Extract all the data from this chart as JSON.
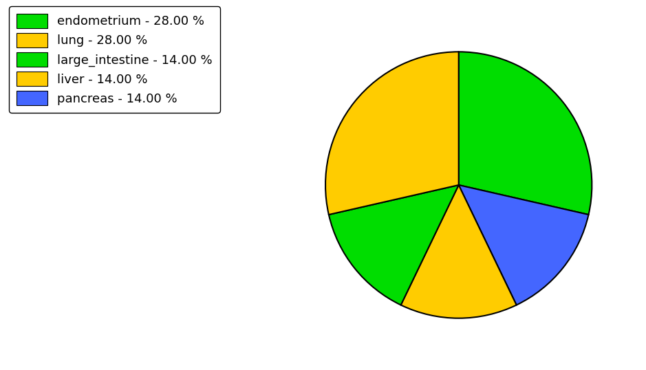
{
  "pie_order": [
    "endometrium",
    "pancreas",
    "liver",
    "large_intestine",
    "lung"
  ],
  "pie_values": [
    28,
    14,
    14,
    14,
    28
  ],
  "pie_colors": [
    "#00dd00",
    "#4466ff",
    "#ffcc00",
    "#00dd00",
    "#ffcc00"
  ],
  "legend_labels": [
    "endometrium - 28.00 %",
    "lung - 28.00 %",
    "large_intestine - 14.00 %",
    "liver - 14.00 %",
    "pancreas - 14.00 %"
  ],
  "legend_colors": [
    "#00dd00",
    "#ffcc00",
    "#00dd00",
    "#ffcc00",
    "#4466ff"
  ],
  "startangle": 90,
  "counterclock": false,
  "background_color": "#ffffff",
  "edge_color": "black",
  "edge_linewidth": 1.5
}
